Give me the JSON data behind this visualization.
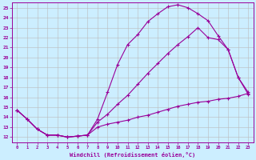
{
  "xlabel": "Windchill (Refroidissement éolien,°C)",
  "bg_color": "#cceeff",
  "line_color": "#990099",
  "grid_color": "#bbbbbb",
  "xlim": [
    -0.5,
    23.5
  ],
  "ylim": [
    11.5,
    25.5
  ],
  "xticks": [
    0,
    1,
    2,
    3,
    4,
    5,
    6,
    7,
    8,
    9,
    10,
    11,
    12,
    13,
    14,
    15,
    16,
    17,
    18,
    19,
    20,
    21,
    22,
    23
  ],
  "yticks": [
    12,
    13,
    14,
    15,
    16,
    17,
    18,
    19,
    20,
    21,
    22,
    23,
    24,
    25
  ],
  "curve1_x": [
    0,
    1,
    2,
    3,
    4,
    5,
    6,
    7,
    8,
    9,
    10,
    11,
    12,
    13,
    14,
    15,
    16,
    17,
    18,
    19,
    20,
    21,
    22,
    23
  ],
  "curve1_y": [
    14.7,
    13.8,
    12.8,
    12.2,
    12.2,
    12.0,
    12.1,
    12.2,
    13.8,
    16.5,
    19.3,
    21.3,
    22.3,
    23.6,
    24.4,
    25.1,
    25.3,
    25.0,
    24.4,
    23.7,
    22.2,
    20.8,
    18.0,
    16.5
  ],
  "curve2_x": [
    0,
    1,
    2,
    3,
    4,
    5,
    6,
    7,
    8,
    9,
    10,
    11,
    12,
    13,
    14,
    15,
    16,
    17,
    18,
    19,
    20,
    21,
    22,
    23
  ],
  "curve2_y": [
    14.7,
    13.8,
    12.8,
    12.2,
    12.2,
    12.0,
    12.1,
    12.2,
    13.5,
    14.3,
    15.3,
    16.2,
    17.3,
    18.4,
    19.4,
    20.4,
    21.3,
    22.1,
    23.0,
    22.0,
    21.8,
    20.8,
    18.0,
    16.3
  ],
  "curve3_x": [
    0,
    1,
    2,
    3,
    4,
    5,
    6,
    7,
    8,
    9,
    10,
    11,
    12,
    13,
    14,
    15,
    16,
    17,
    18,
    19,
    20,
    21,
    22,
    23
  ],
  "curve3_y": [
    14.7,
    13.8,
    12.8,
    12.2,
    12.2,
    12.0,
    12.1,
    12.2,
    13.0,
    13.3,
    13.5,
    13.7,
    14.0,
    14.2,
    14.5,
    14.8,
    15.1,
    15.3,
    15.5,
    15.6,
    15.8,
    15.9,
    16.1,
    16.4
  ]
}
